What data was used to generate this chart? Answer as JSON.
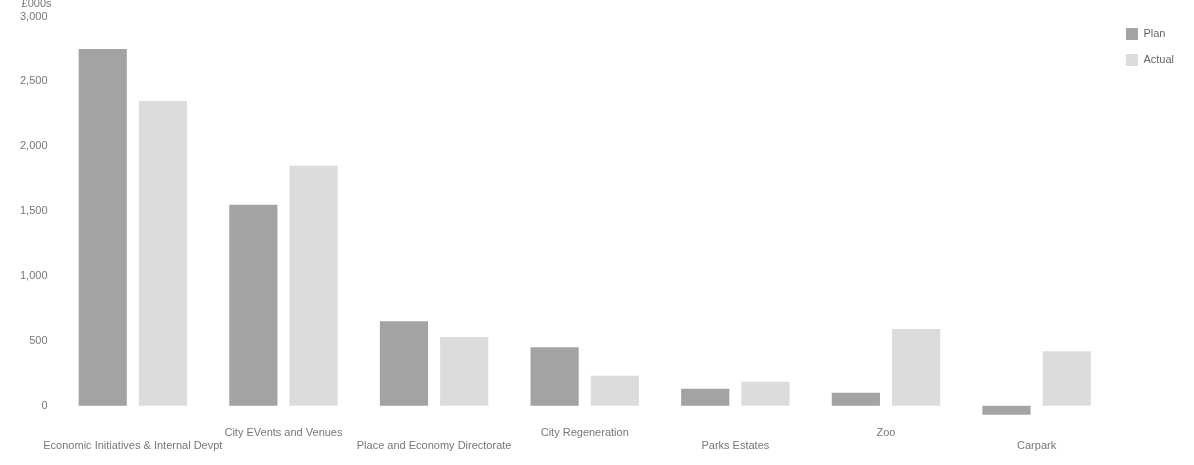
{
  "chart_data": {
    "type": "bar",
    "ylabel": "£000s",
    "categories": [
      "Economic Initiatives & Internal Devpt",
      "City EVents and Venues",
      "Place and Economy Directorate",
      "City Regeneration",
      "Parks Estates",
      "Zoo",
      "Carpark"
    ],
    "series": [
      {
        "name": "Plan",
        "color": "#a3a3a3",
        "values": [
          2750,
          1550,
          650,
          450,
          130,
          100,
          -70
        ]
      },
      {
        "name": "Actual",
        "color": "#dcdcdc",
        "values": [
          2350,
          1850,
          530,
          230,
          185,
          590,
          420
        ]
      }
    ],
    "ylim": [
      -100,
      3000
    ],
    "yticks": [
      0,
      500,
      {
        "value": 1000,
        "label": "1,000"
      },
      {
        "value": 1500,
        "label": "1,500"
      },
      {
        "value": 2000,
        "label": "2,000"
      },
      {
        "value": 2500,
        "label": "2,500"
      },
      {
        "value": 3000,
        "label": "3,000"
      }
    ],
    "grid": false,
    "legend": "top right"
  }
}
